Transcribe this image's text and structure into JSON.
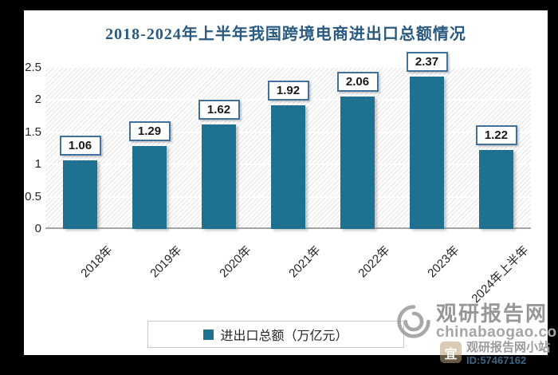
{
  "chart_data": {
    "type": "bar",
    "title": "2018-2024年上半年我国跨境电商进出口总额情况",
    "categories": [
      "2018年",
      "2019年",
      "2020年",
      "2021年",
      "2022年",
      "2023年",
      "2024年上半年"
    ],
    "values": [
      1.06,
      1.29,
      1.62,
      1.92,
      2.06,
      2.37,
      1.22
    ],
    "value_labels": [
      "1.06",
      "1.29",
      "1.62",
      "1.92",
      "2.06",
      "2.37",
      "1.22"
    ],
    "legend": "进出口总额（万亿元）",
    "legend_position": "bottom",
    "xlabel": "",
    "ylabel": "",
    "ylim": [
      0,
      2.5
    ],
    "yticks": [
      "0",
      "0.5",
      "1",
      "1.5",
      "2",
      "2.5"
    ],
    "grid": true,
    "bar_color": "#1f7192",
    "title_color": "#2b5a80",
    "label_box_border_color": "#41719c"
  },
  "watermark": {
    "site_name": "观研报告网",
    "site_url": "chinabaogao.com"
  },
  "small_watermark": {
    "icon_glyph": "宜",
    "line1": "观研报告网小站",
    "line2": "ID:57467162"
  }
}
